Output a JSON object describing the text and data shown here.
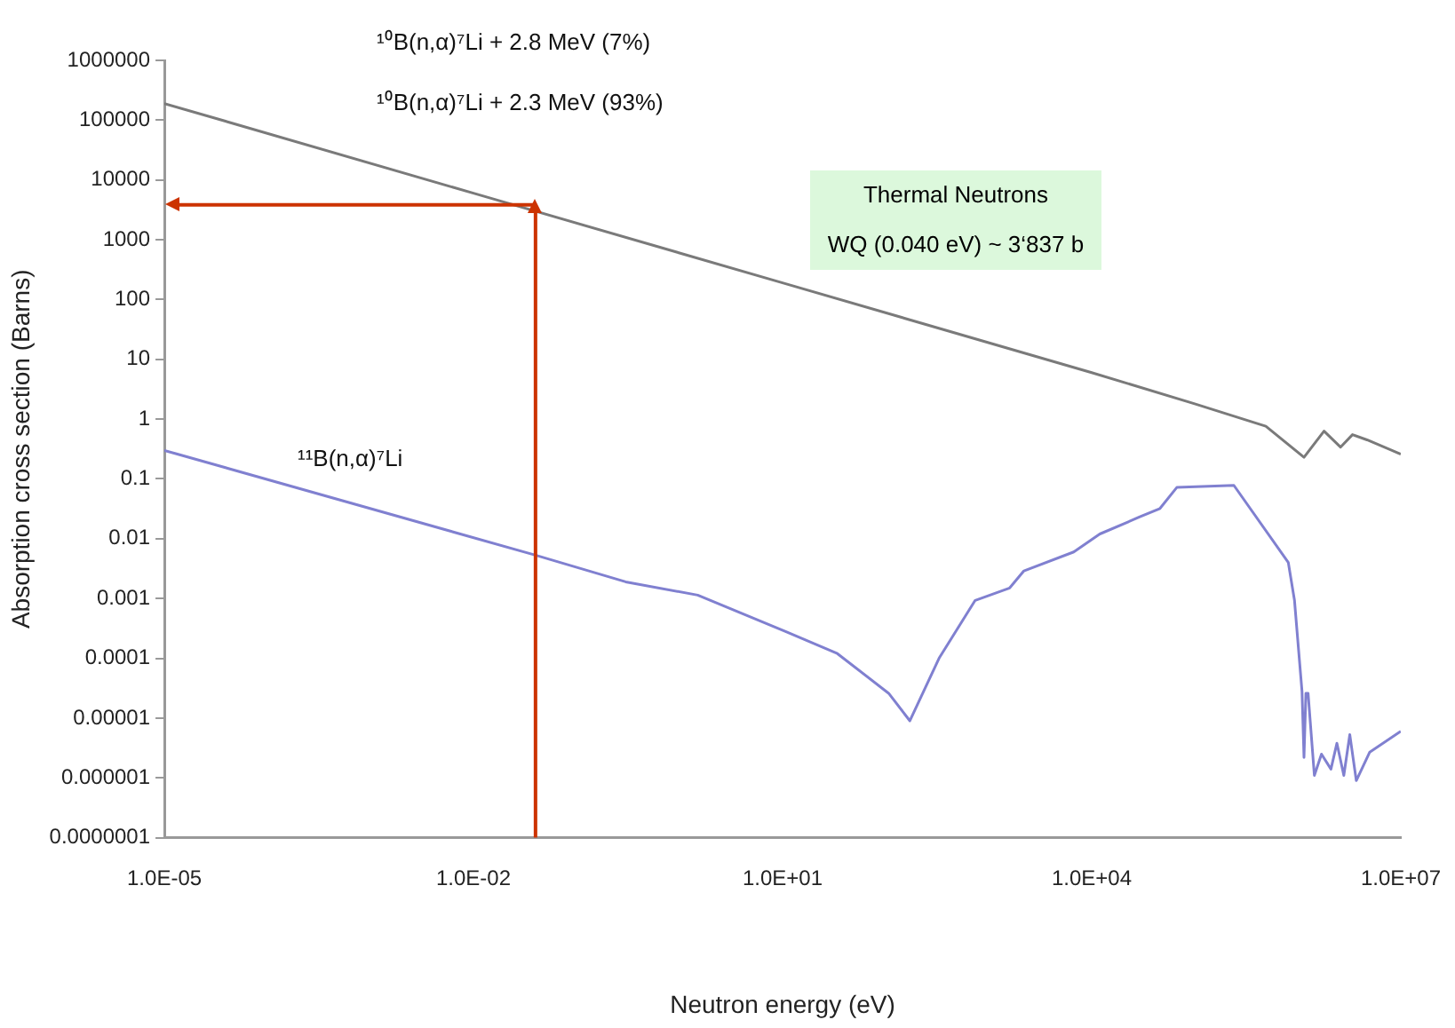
{
  "chart_data": {
    "type": "line",
    "xlabel": "Neutron energy (eV)",
    "ylabel": "Absorption cross section (Barns)",
    "log": "xy",
    "grid": false,
    "legend": false,
    "marker": "none",
    "line_style": "solid",
    "xlim": [
      1e-05,
      10000000
    ],
    "xticks": [
      {
        "value": 1e-05,
        "label": "1.0E-05"
      },
      {
        "value": 0.01,
        "label": "1.0E-02"
      },
      {
        "value": 10,
        "label": "1.0E+01"
      },
      {
        "value": 10000,
        "label": "1.0E+04"
      },
      {
        "value": 10000000,
        "label": "1.0E+07"
      }
    ],
    "ylim": [
      1e-07,
      1000000
    ],
    "yticks": [
      {
        "value": 1000000,
        "label": "1000000"
      },
      {
        "value": 100000,
        "label": "100000"
      },
      {
        "value": 10000,
        "label": "10000"
      },
      {
        "value": 1000,
        "label": "1000"
      },
      {
        "value": 100,
        "label": "100"
      },
      {
        "value": 10,
        "label": "10"
      },
      {
        "value": 1,
        "label": "1"
      },
      {
        "value": 0.1,
        "label": "0.1"
      },
      {
        "value": 0.01,
        "label": "0.01"
      },
      {
        "value": 0.001,
        "label": "0.001"
      },
      {
        "value": 0.0001,
        "label": "0.0001"
      },
      {
        "value": 1e-05,
        "label": "0.00001"
      },
      {
        "value": 1e-06,
        "label": "0.000001"
      },
      {
        "value": 1e-07,
        "label": "0.0000001"
      }
    ],
    "series": [
      {
        "color": "#7a7a7a",
        "x": [
          1e-05,
          0.01,
          10,
          10000,
          100000,
          490000,
          1150000,
          1800000,
          2600000,
          3400000,
          4700000,
          10000000
        ],
        "values": [
          190000,
          6000,
          190,
          6,
          1.8,
          0.76,
          0.23,
          0.63,
          0.34,
          0.55,
          0.45,
          0.26
        ]
      },
      {
        "name": "¹¹B(n,α)⁷Li",
        "color": "#8080d0",
        "x": [
          1e-05,
          0.04,
          0.3,
          1.5,
          10.7,
          34,
          107,
          172,
          330,
          740,
          1600,
          2200,
          6700,
          12000,
          29000,
          46000,
          67000,
          240000,
          810000,
          930000,
          1100000,
          1150000,
          1200000,
          1260000,
          1450000,
          1700000,
          2100000,
          2400000,
          2800000,
          3200000,
          3700000,
          5000000,
          10000000
        ],
        "values": [
          0.3,
          0.0053,
          0.0019,
          0.00114,
          0.00028,
          0.00012,
          2.6e-05,
          9e-06,
          0.0001,
          0.00093,
          0.0015,
          0.0029,
          0.006,
          0.012,
          0.023,
          0.032,
          0.072,
          0.078,
          0.004,
          0.00093,
          2.8e-05,
          2.2e-06,
          2.6e-05,
          2.6e-05,
          1.1e-06,
          2.5e-06,
          1.4e-06,
          3.8e-06,
          1.1e-06,
          5.3e-06,
          9e-07,
          2.7e-06,
          6e-06
        ]
      }
    ],
    "ref_lines": [
      {
        "axis": "x",
        "value": 0.04,
        "color": "#cc3300"
      },
      {
        "axis": "y",
        "value": 3837,
        "color": "#cc3300"
      }
    ],
    "annotations": [
      "¹⁰B(n,α)⁷Li + 2.8 MeV (7%)",
      "¹⁰B(n,α)⁷Li + 2.3 MeV (93%)",
      "Thermal Neutrons",
      "WQ (0.040 eV) ~ 3‘837 b"
    ]
  }
}
